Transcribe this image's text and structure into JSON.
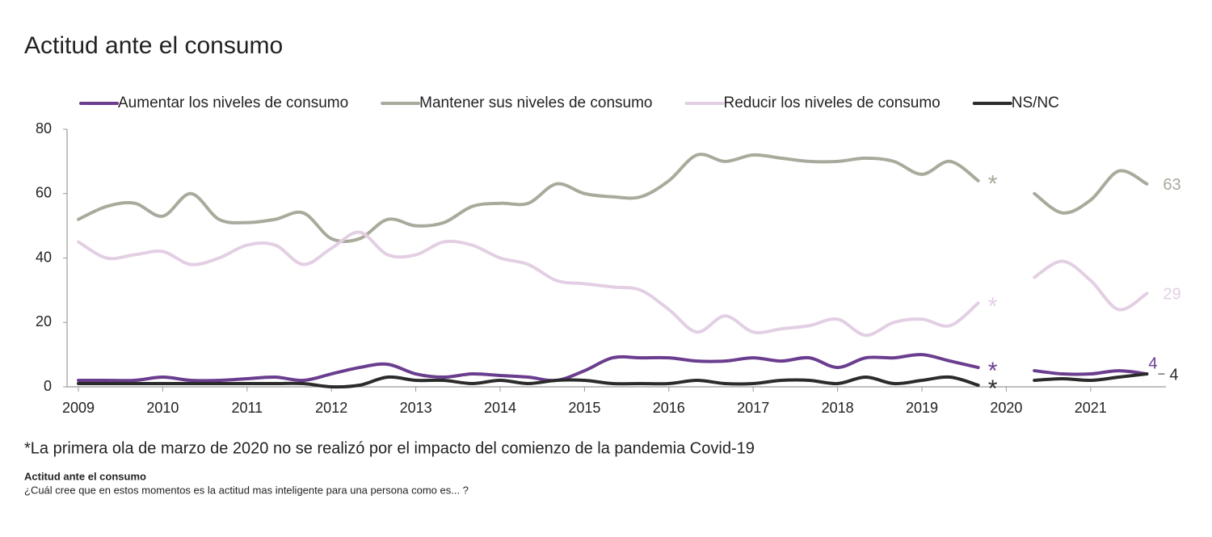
{
  "chart_data": {
    "type": "line",
    "title": "Actitud ante el consumo",
    "categories": [
      "2009",
      null,
      null,
      "2010",
      null,
      null,
      "2011",
      null,
      null,
      "2012",
      null,
      null,
      "2013",
      null,
      null,
      "2014",
      null,
      null,
      "2015",
      null,
      null,
      "2016",
      null,
      null,
      "2017",
      null,
      null,
      "2018",
      null,
      null,
      "2019",
      null,
      null,
      "2020",
      null,
      null,
      "2021",
      null,
      null
    ],
    "ylim": [
      0,
      80
    ],
    "yticks": [
      0,
      20,
      40,
      60,
      80
    ],
    "series": [
      {
        "name": "Aumentar los niveles de consumo",
        "color": "#6a3d8e",
        "note": "*",
        "values": [
          2,
          2,
          2,
          3,
          2,
          2,
          2.5,
          3,
          2,
          4,
          6,
          7,
          4,
          3,
          4,
          3.5,
          3,
          2,
          5,
          9,
          9,
          9,
          8,
          8,
          9,
          8,
          9,
          6,
          9,
          9,
          10,
          8,
          6,
          null,
          5,
          4,
          4,
          5,
          4
        ]
      },
      {
        "name": "Mantener sus niveles de consumo",
        "color": "#a8aa9b",
        "note": "*",
        "values": [
          52,
          56,
          57,
          53,
          60,
          52,
          51,
          52,
          54,
          46,
          46,
          52,
          50,
          51,
          56,
          57,
          57,
          63,
          60,
          59,
          59,
          64,
          72,
          70,
          72,
          71,
          70,
          70,
          71,
          70,
          66,
          70,
          64,
          null,
          60,
          54,
          58,
          67,
          63
        ]
      },
      {
        "name": "Reducir los niveles de consumo",
        "color": "#e3cfe4",
        "note": "*",
        "values": [
          45,
          40,
          41,
          42,
          38,
          40,
          44,
          44,
          38,
          43,
          48,
          41,
          41,
          45,
          44,
          40,
          38,
          33,
          32,
          31,
          30,
          24,
          17,
          22,
          17,
          18,
          19,
          21,
          16,
          20,
          21,
          19,
          26,
          null,
          34,
          39,
          33,
          24,
          29
        ]
      },
      {
        "name": "NS/NC",
        "color": "#2b2b2b",
        "note": "*",
        "values": [
          1,
          1,
          1,
          1,
          1,
          1,
          1,
          1,
          1,
          0,
          0.5,
          3,
          2,
          2,
          1,
          2,
          1,
          2,
          2,
          1,
          1,
          1,
          2,
          1,
          1,
          2,
          2,
          1,
          3,
          1,
          2,
          3,
          0.5,
          null,
          2,
          2.5,
          2,
          3,
          4
        ]
      }
    ],
    "footnote": "*La primera ola de marzo de 2020 no se realizó por el impacto del comienzo de la pandemia Covid-19",
    "source_title": "Actitud ante el consumo",
    "source_note": "¿Cuál cree que en estos momentos es la actitud mas inteligente para una persona como es... ?"
  }
}
